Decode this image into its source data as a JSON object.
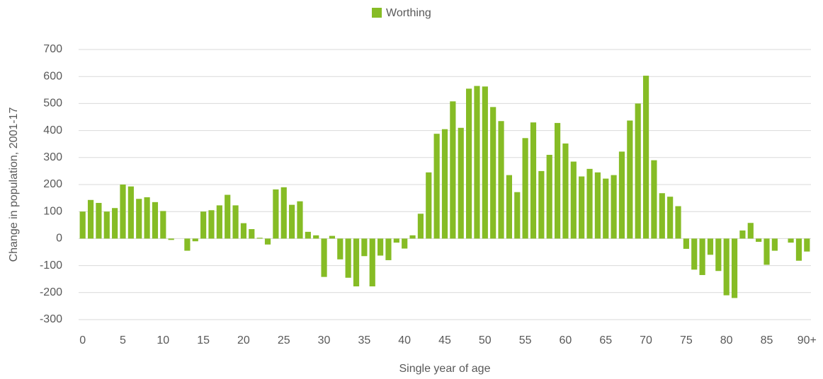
{
  "chart_data": {
    "type": "bar",
    "legend": "Worthing",
    "legend_position": "top",
    "color": "#86bc25",
    "ylabel": "Change in population, 2001-17",
    "xlabel": "Single year of age",
    "categories": [
      "0",
      null,
      null,
      null,
      null,
      "5",
      null,
      null,
      null,
      null,
      "10",
      null,
      null,
      null,
      null,
      "15",
      null,
      null,
      null,
      null,
      "20",
      null,
      null,
      null,
      null,
      "25",
      null,
      null,
      null,
      null,
      "30",
      null,
      null,
      null,
      null,
      "35",
      null,
      null,
      null,
      null,
      "40",
      null,
      null,
      null,
      null,
      "45",
      null,
      null,
      null,
      null,
      "50",
      null,
      null,
      null,
      null,
      "55",
      null,
      null,
      null,
      null,
      "60",
      null,
      null,
      null,
      null,
      "65",
      null,
      null,
      null,
      null,
      "70",
      null,
      null,
      null,
      null,
      "75",
      null,
      null,
      null,
      null,
      "80",
      null,
      null,
      null,
      null,
      "85",
      null,
      null,
      null,
      null,
      "90+"
    ],
    "values": [
      100,
      143,
      132,
      100,
      113,
      200,
      193,
      147,
      153,
      135,
      102,
      -5,
      0,
      -45,
      -10,
      100,
      105,
      123,
      162,
      123,
      57,
      35,
      3,
      -22,
      182,
      190,
      125,
      138,
      25,
      12,
      -142,
      10,
      -77,
      -145,
      -177,
      -65,
      -177,
      -63,
      -80,
      -15,
      -37,
      12,
      92,
      245,
      388,
      405,
      508,
      410,
      555,
      565,
      563,
      487,
      435,
      235,
      172,
      372,
      430,
      250,
      310,
      428,
      352,
      285,
      230,
      258,
      245,
      222,
      235,
      322,
      437,
      500,
      603,
      290,
      168,
      155,
      120,
      -38,
      -115,
      -135,
      -60,
      -120,
      -210,
      -220,
      30,
      58,
      -12,
      -97,
      -45,
      0,
      -15,
      -82,
      -48
    ],
    "ylim": [
      -300,
      700
    ],
    "yticks": [
      -300,
      -200,
      -100,
      0,
      100,
      200,
      300,
      400,
      500,
      600,
      700
    ],
    "grid": true
  }
}
